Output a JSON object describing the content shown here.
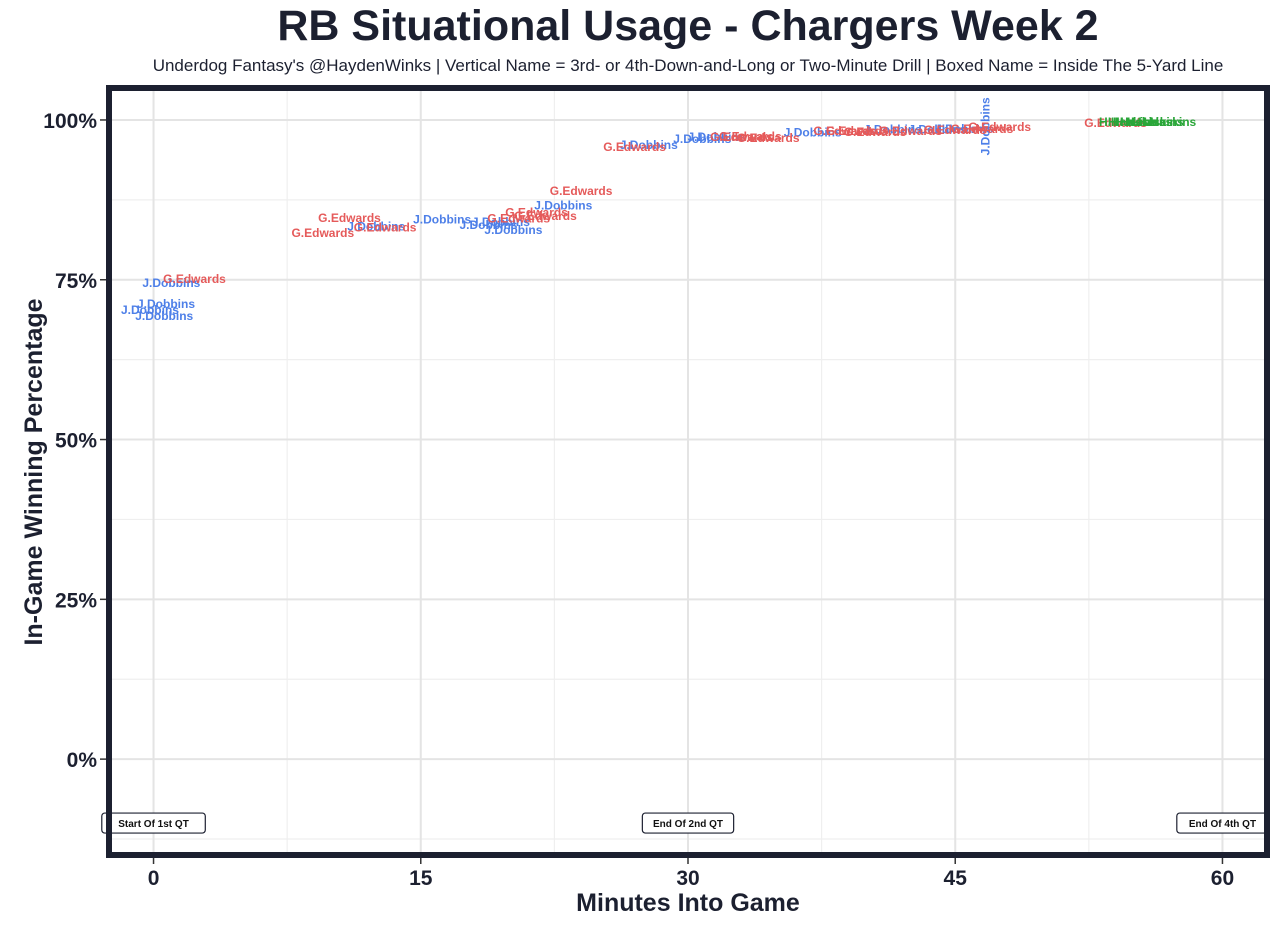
{
  "chart_data": {
    "type": "scatter",
    "title": "RB Situational Usage - Chargers Week 2",
    "subtitle": "Underdog Fantasy's @HaydenWinks | Vertical Name = 3rd- or 4th-Down-and-Long or Two-Minute Drill | Boxed Name = Inside The 5-Yard Line",
    "xlabel": "Minutes Into Game",
    "ylabel": "In-Game Winning Percentage",
    "xlim": [
      -2.5,
      62.5
    ],
    "ylim": [
      -15,
      105
    ],
    "x_ticks": [
      0,
      15,
      30,
      45,
      60
    ],
    "x_tick_labels": [
      "0",
      "15",
      "30",
      "45",
      "60"
    ],
    "y_ticks": [
      0,
      25,
      50,
      75,
      100
    ],
    "y_tick_labels": [
      "0%",
      "25%",
      "50%",
      "75%",
      "100%"
    ],
    "grid": true,
    "colors": {
      "J.Dobbins": "#4d7fe8",
      "G.Edwards": "#e55a5a",
      "H.Haskins": "#2aa639",
      "frame": "#1c2030"
    },
    "annotations": [
      {
        "text": "Start Of 1st QT",
        "x": 0,
        "y": -10
      },
      {
        "text": "End Of 2nd QT",
        "x": 30,
        "y": -10
      },
      {
        "text": "End Of 4th QT",
        "x": 60,
        "y": -10
      }
    ],
    "series": [
      {
        "name": "J.Dobbins",
        "color": "#4d7fe8",
        "points": [
          {
            "x": -0.2,
            "y": 70.3
          },
          {
            "x": 0.6,
            "y": 69.3
          },
          {
            "x": 0.7,
            "y": 71.2
          },
          {
            "x": 1.0,
            "y": 74.5
          },
          {
            "x": 12.5,
            "y": 83.3
          },
          {
            "x": 16.2,
            "y": 84.4
          },
          {
            "x": 18.8,
            "y": 83.6
          },
          {
            "x": 19.5,
            "y": 84.0
          },
          {
            "x": 20.2,
            "y": 82.8
          },
          {
            "x": 23.0,
            "y": 86.6
          },
          {
            "x": 27.8,
            "y": 96.1
          },
          {
            "x": 30.8,
            "y": 97.0
          },
          {
            "x": 31.6,
            "y": 97.3
          },
          {
            "x": 37.0,
            "y": 98.0
          },
          {
            "x": 41.5,
            "y": 98.5
          },
          {
            "x": 44.0,
            "y": 98.5
          },
          {
            "x": 45.5,
            "y": 98.6
          },
          {
            "x": 46.7,
            "y": 99.0,
            "vertical": true
          }
        ]
      },
      {
        "name": "G.Edwards",
        "color": "#e55a5a",
        "points": [
          {
            "x": 2.3,
            "y": 75.1
          },
          {
            "x": 9.5,
            "y": 82.3
          },
          {
            "x": 11.0,
            "y": 84.7
          },
          {
            "x": 13.0,
            "y": 83.2
          },
          {
            "x": 20.5,
            "y": 84.6
          },
          {
            "x": 21.5,
            "y": 85.5
          },
          {
            "x": 22.0,
            "y": 85.0
          },
          {
            "x": 24.0,
            "y": 88.9
          },
          {
            "x": 27.0,
            "y": 95.8
          },
          {
            "x": 33.0,
            "y": 97.3
          },
          {
            "x": 33.5,
            "y": 97.4
          },
          {
            "x": 34.5,
            "y": 97.2
          },
          {
            "x": 38.8,
            "y": 98.3
          },
          {
            "x": 39.5,
            "y": 98.3
          },
          {
            "x": 40.5,
            "y": 98.1
          },
          {
            "x": 42.5,
            "y": 98.3
          },
          {
            "x": 45.0,
            "y": 98.4
          },
          {
            "x": 46.5,
            "y": 98.6
          },
          {
            "x": 47.5,
            "y": 98.9
          },
          {
            "x": 54.0,
            "y": 99.5
          }
        ]
      },
      {
        "name": "H.Haskins",
        "color": "#2aa639",
        "points": [
          {
            "x": 54.7,
            "y": 99.7
          },
          {
            "x": 55.2,
            "y": 99.7
          },
          {
            "x": 55.6,
            "y": 99.7
          },
          {
            "x": 56.2,
            "y": 99.7
          },
          {
            "x": 56.9,
            "y": 99.7
          }
        ]
      }
    ]
  }
}
